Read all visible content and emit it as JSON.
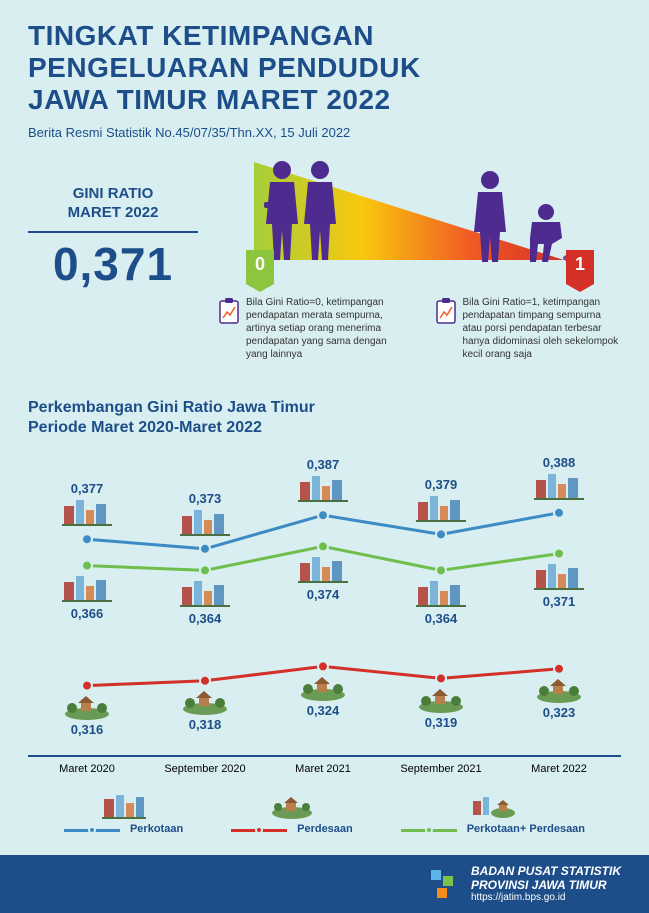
{
  "header": {
    "title_line1": "TINGKAT KETIMPANGAN",
    "title_line2": "PENGELUARAN PENDUDUK",
    "title_line3": "JAWA TIMUR MARET 2022",
    "subtitle": "Berita Resmi Statistik No.45/07/35/Thn.XX, 15 Juli 2022"
  },
  "gini_box": {
    "label_line1": "GINI RATIO",
    "label_line2": "MARET 2022",
    "value": "0,371"
  },
  "scale": {
    "zero": "0",
    "one": "1",
    "gradient_colors": [
      "#a6ce39",
      "#f9c80e",
      "#f15a24",
      "#d43027"
    ],
    "zero_badge_color": "#8cc63f",
    "one_badge_color": "#d43027",
    "expl0": "Bila Gini Ratio=0, ketimpangan pendapatan merata sempurna, artinya setiap orang menerima pendapatan yang sama dengan yang lainnya",
    "expl1": "Bila Gini Ratio=1, ketimpangan pendapatan timpang sempurna atau porsi pendapatan terbesar hanya didominasi oleh sekelompok kecil orang saja"
  },
  "chart": {
    "title_line1": "Perkembangan Gini Ratio Jawa Timur",
    "title_line2": "Periode Maret 2020-Maret 2022",
    "type": "line",
    "categories": [
      "Maret 2020",
      "September 2020",
      "Maret 2021",
      "September 2021",
      "Maret 2022"
    ],
    "series": {
      "perkotaan": {
        "label": "Perkotaan",
        "color": "#3d8bc5",
        "values": [
          0.377,
          0.373,
          0.387,
          0.379,
          0.388
        ]
      },
      "perdesaan": {
        "label": "Perdesaan",
        "color": "#d43027",
        "values": [
          0.316,
          0.318,
          0.324,
          0.319,
          0.323
        ]
      },
      "combined": {
        "label": "Perkotaan+ Perdesaan",
        "color": "#6ebe4b",
        "values": [
          0.366,
          0.364,
          0.374,
          0.364,
          0.371
        ]
      }
    },
    "ylim": [
      0.3,
      0.4
    ],
    "line_width": 3,
    "marker_size": 7,
    "background_color": "#d8eef0",
    "axis_color": "#1d4e89"
  },
  "footer": {
    "org_line1": "BADAN PUSAT STATISTIK",
    "org_line2": "PROVINSI JAWA TIMUR",
    "url": "https://jatim.bps.go.id"
  },
  "colors": {
    "brand_blue": "#1d4e89",
    "bg": "#d8eef0",
    "person": "#4e2b8e"
  }
}
